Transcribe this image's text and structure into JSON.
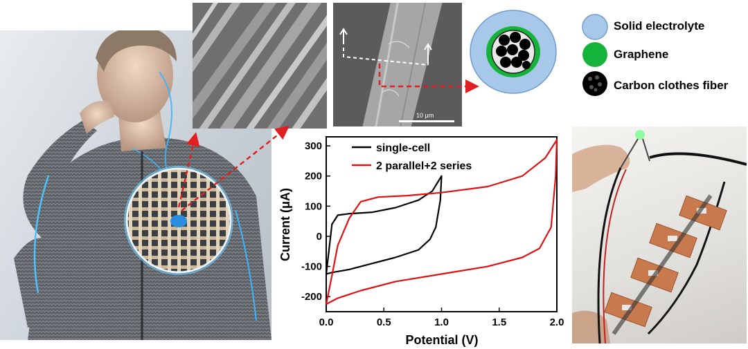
{
  "legend": {
    "items": [
      {
        "label": "Solid electrolyte",
        "color": "#a8c8ea"
      },
      {
        "label": "Graphene",
        "color": "#16b33a"
      },
      {
        "label": "Carbon clothes fiber",
        "color": "#000000"
      }
    ]
  },
  "sem2": {
    "scale_label": "10 μm"
  },
  "colors": {
    "arrow": "#e02020",
    "single_cell": "#000000",
    "parallel_series": "#e01010"
  },
  "chart_data": {
    "type": "line",
    "xlabel": "Potential (V)",
    "ylabel": "Current (μA)",
    "xlim": [
      0.0,
      2.0
    ],
    "ylim": [
      -250,
      330
    ],
    "xticks": [
      "0.0",
      "0.5",
      "1.0",
      "1.5",
      "2.0"
    ],
    "yticks": [
      "-200",
      "-100",
      "0",
      "100",
      "200",
      "300"
    ],
    "series": [
      {
        "name": "single-cell",
        "color": "#000000",
        "points": [
          [
            0.0,
            -125
          ],
          [
            0.02,
            -60
          ],
          [
            0.05,
            40
          ],
          [
            0.1,
            70
          ],
          [
            0.2,
            75
          ],
          [
            0.4,
            80
          ],
          [
            0.6,
            95
          ],
          [
            0.8,
            120
          ],
          [
            0.92,
            150
          ],
          [
            1.0,
            200
          ],
          [
            0.99,
            120
          ],
          [
            0.95,
            30
          ],
          [
            0.9,
            -10
          ],
          [
            0.8,
            -45
          ],
          [
            0.6,
            -70
          ],
          [
            0.4,
            -90
          ],
          [
            0.2,
            -110
          ],
          [
            0.05,
            -120
          ],
          [
            0.0,
            -125
          ]
        ]
      },
      {
        "name": "2 parallel+2 series",
        "color": "#e01010",
        "points": [
          [
            0.0,
            -225
          ],
          [
            0.05,
            -130
          ],
          [
            0.1,
            -30
          ],
          [
            0.2,
            60
          ],
          [
            0.3,
            115
          ],
          [
            0.45,
            130
          ],
          [
            0.7,
            135
          ],
          [
            1.0,
            145
          ],
          [
            1.4,
            165
          ],
          [
            1.7,
            200
          ],
          [
            1.9,
            260
          ],
          [
            2.0,
            320
          ],
          [
            1.99,
            200
          ],
          [
            1.95,
            30
          ],
          [
            1.85,
            -40
          ],
          [
            1.7,
            -70
          ],
          [
            1.4,
            -100
          ],
          [
            1.0,
            -125
          ],
          [
            0.6,
            -150
          ],
          [
            0.3,
            -180
          ],
          [
            0.1,
            -205
          ],
          [
            0.0,
            -225
          ]
        ]
      }
    ]
  }
}
